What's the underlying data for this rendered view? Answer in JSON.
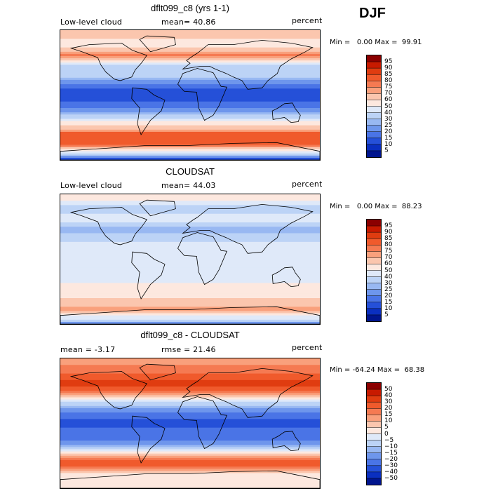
{
  "season": "DJF",
  "panels": [
    {
      "title": "dflt099_c8 (yrs 1-1)",
      "left_label": "Low-level cloud",
      "mean_label": "mean=  40.86",
      "units": "percent",
      "minmax": "Min =   0.00 Max =  99.91"
    },
    {
      "title": "CLOUDSAT",
      "left_label": "Low-level cloud",
      "mean_label": "mean=  44.03",
      "units": "percent",
      "minmax": "Min =   0.00 Max =  88.23"
    },
    {
      "title": "dflt099_c8 - CLOUDSAT",
      "left_label": "mean =   -3.17",
      "mean_label": "rmse =  21.46",
      "units": "percent",
      "minmax": "Min = -64.24 Max =  68.38"
    }
  ],
  "colorbars": {
    "abs_levels": [
      "95",
      "90",
      "85",
      "80",
      "75",
      "70",
      "60",
      "50",
      "40",
      "30",
      "25",
      "20",
      "15",
      "10",
      "5"
    ],
    "abs_colors": [
      "#8b0000",
      "#c81a00",
      "#e03c10",
      "#f05a2c",
      "#f57a52",
      "#f9a07c",
      "#fbc6ae",
      "#fde8df",
      "#dfe9f9",
      "#bcd3f6",
      "#98b8f2",
      "#6e96ec",
      "#4a74e6",
      "#2550d8",
      "#0a2fc0",
      "#00158e"
    ],
    "diff_levels": [
      "50",
      "40",
      "30",
      "20",
      "15",
      "10",
      "5",
      "0",
      "−5",
      "−10",
      "−15",
      "−20",
      "−30",
      "−40",
      "−50"
    ],
    "diff_colors": [
      "#8b0000",
      "#c81a00",
      "#e03c10",
      "#f05a2c",
      "#f57a52",
      "#f9a07c",
      "#fbc6ae",
      "#fde8df",
      "#dfe9f9",
      "#bcd3f6",
      "#98b8f2",
      "#6e96ec",
      "#4a74e6",
      "#2550d8",
      "#0a2fc0",
      "#00158e"
    ]
  },
  "chart_data": [
    {
      "type": "heatmap",
      "title": "dflt099_c8 (yrs 1-1)",
      "variable": "Low-level cloud",
      "units": "percent",
      "mean": 40.86,
      "min": 0.0,
      "max": 99.91,
      "levels": [
        5,
        10,
        15,
        20,
        25,
        30,
        40,
        50,
        60,
        70,
        75,
        80,
        85,
        90,
        95
      ],
      "zonal_profile_lat": [
        90,
        70,
        55,
        40,
        25,
        10,
        0,
        -10,
        -25,
        -40,
        -55,
        -70,
        -90
      ],
      "zonal_profile_value": [
        70,
        55,
        80,
        35,
        30,
        15,
        10,
        15,
        25,
        55,
        85,
        80,
        5
      ]
    },
    {
      "type": "heatmap",
      "title": "CLOUDSAT",
      "variable": "Low-level cloud",
      "units": "percent",
      "mean": 44.03,
      "min": 0.0,
      "max": 88.23,
      "levels": [
        5,
        10,
        15,
        20,
        25,
        30,
        40,
        50,
        60,
        70,
        75,
        80,
        85,
        90,
        95
      ],
      "zonal_profile_lat": [
        90,
        70,
        55,
        40,
        25,
        10,
        0,
        -10,
        -25,
        -40,
        -55,
        -70,
        -90
      ],
      "zonal_profile_value": [
        60,
        35,
        45,
        25,
        40,
        40,
        45,
        40,
        45,
        55,
        60,
        75,
        20
      ]
    },
    {
      "type": "heatmap",
      "title": "dflt099_c8 - CLOUDSAT",
      "units": "percent",
      "mean": -3.17,
      "rmse": 21.46,
      "min": -64.24,
      "max": 68.38,
      "levels": [
        -50,
        -40,
        -30,
        -20,
        -15,
        -10,
        -5,
        0,
        5,
        10,
        15,
        20,
        30,
        40,
        50
      ],
      "zonal_profile_lat": [
        90,
        70,
        55,
        40,
        25,
        10,
        0,
        -10,
        -25,
        -40,
        -55,
        -70,
        -90
      ],
      "zonal_profile_value": [
        10,
        20,
        35,
        10,
        -10,
        -25,
        -35,
        -25,
        -20,
        0,
        25,
        5,
        0
      ]
    }
  ]
}
